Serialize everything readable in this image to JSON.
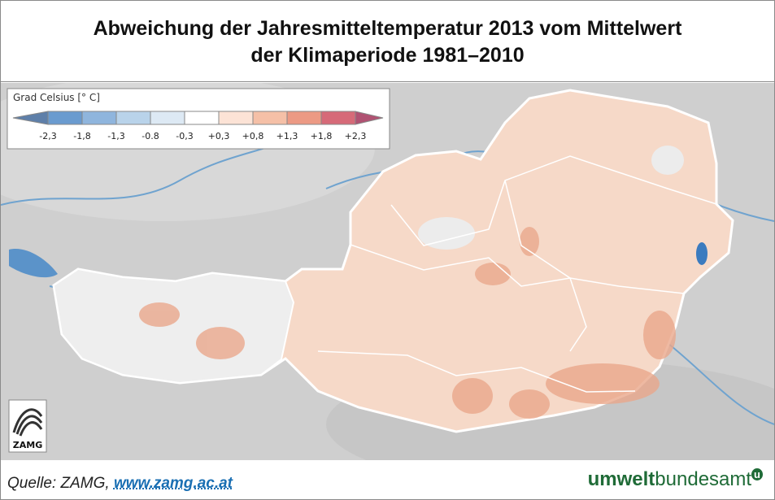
{
  "header": {
    "title_line1": "Abweichung der Jahresmitteltemperatur 2013 vom Mittelwert",
    "title_line2": "der Klimaperiode 1981–2010"
  },
  "legend": {
    "title": "Grad Celsius [° C]",
    "labels": [
      "-2,3",
      "-1,8",
      "-1,3",
      "-0.8",
      "-0,3",
      "+0,3",
      "+0,8",
      "+1,3",
      "+1,8",
      "+2,3"
    ],
    "colors": [
      "#5e7fa9",
      "#6a9bcf",
      "#8fb5dd",
      "#b9d3ea",
      "#dde9f4",
      "#ffffff",
      "#fce3d6",
      "#f5c0a7",
      "#ec9a84",
      "#d66a78",
      "#b05272"
    ]
  },
  "map": {
    "logo_text": "ZAMG"
  },
  "footer": {
    "source": "Quelle: ZAMG,",
    "link": "www.zamg.ac.at",
    "brand_bold": "umwelt",
    "brand_regular": "bundesamt",
    "brand_mark": "u"
  }
}
